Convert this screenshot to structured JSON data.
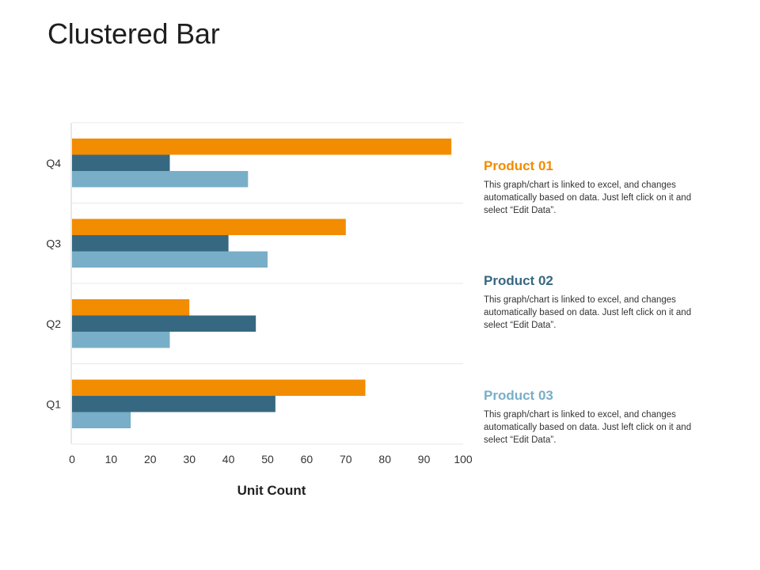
{
  "page": {
    "title": "Clustered Bar"
  },
  "chart_data": {
    "type": "bar",
    "orientation": "horizontal",
    "title": "",
    "xlabel": "Unit Count",
    "ylabel": "",
    "xlim": [
      0,
      100
    ],
    "xticks": [
      0,
      10,
      20,
      30,
      40,
      50,
      60,
      70,
      80,
      90,
      100
    ],
    "categories": [
      "Q1",
      "Q2",
      "Q3",
      "Q4"
    ],
    "series": [
      {
        "name": "Product 01",
        "color": "#F28C00",
        "values": [
          75,
          30,
          70,
          97
        ]
      },
      {
        "name": "Product 02",
        "color": "#376882",
        "values": [
          52,
          47,
          40,
          25
        ]
      },
      {
        "name": "Product 03",
        "color": "#79AEC8",
        "values": [
          15,
          25,
          50,
          45
        ]
      }
    ]
  },
  "legend": [
    {
      "title": "Product 01",
      "color": "#F28C00",
      "text": "This graph/chart is linked to excel, and changes automatically based on data. Just left click on it and select “Edit Data”."
    },
    {
      "title": "Product 02",
      "color": "#376882",
      "text": "This graph/chart is linked to excel, and changes automatically based on data. Just left click on it and select “Edit Data”."
    },
    {
      "title": "Product 03",
      "color": "#79AEC8",
      "text": "This graph/chart is linked to excel, and changes automatically based on data. Just left click on it and select “Edit Data”."
    }
  ]
}
